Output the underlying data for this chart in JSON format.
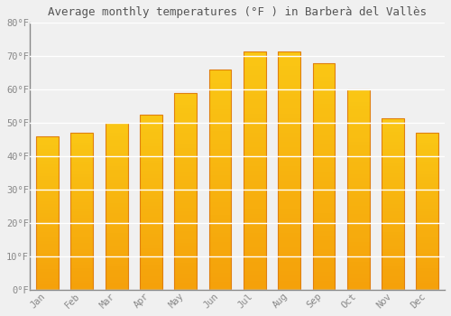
{
  "title": "Average monthly temperatures (°F ) in Barberà del Vallès",
  "months": [
    "Jan",
    "Feb",
    "Mar",
    "Apr",
    "May",
    "Jun",
    "Jul",
    "Aug",
    "Sep",
    "Oct",
    "Nov",
    "Dec"
  ],
  "values": [
    46,
    47,
    50,
    52.5,
    59,
    66,
    71.5,
    71.5,
    68,
    60,
    51.5,
    47
  ],
  "bar_color": "#FBB117",
  "bar_edge_color": "#E08010",
  "bar_gradient_top": "#FFCC44",
  "bar_gradient_bottom": "#F5A000",
  "background_color": "#f0f0f0",
  "plot_bg_color": "#f0f0f0",
  "grid_color": "#ffffff",
  "title_color": "#555555",
  "tick_color": "#888888",
  "spine_color": "#888888",
  "ylim": [
    0,
    80
  ],
  "ytick_step": 10,
  "title_fontsize": 9,
  "tick_fontsize": 7.5,
  "figsize": [
    5.0,
    3.5
  ],
  "dpi": 100
}
